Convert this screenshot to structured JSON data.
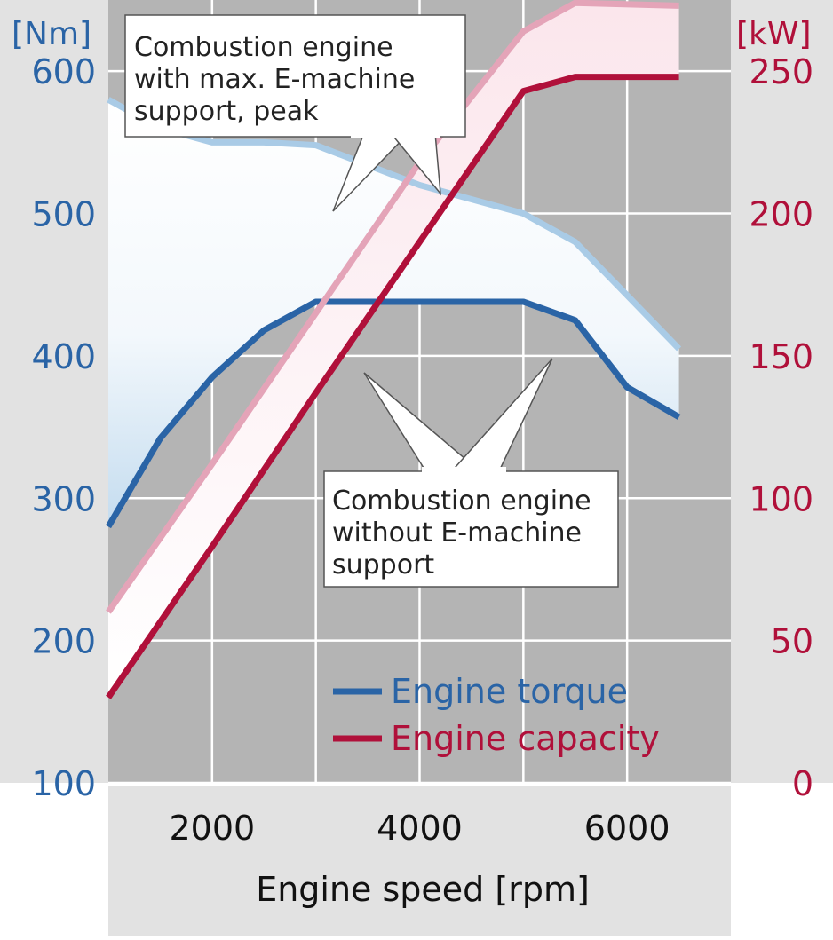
{
  "chart_data": {
    "type": "line",
    "xlabel": "Engine speed [rpm]",
    "x_ticks": [
      2000,
      4000,
      6000
    ],
    "xlim": [
      1000,
      7000
    ],
    "y_left": {
      "unit_label": "[Nm]",
      "ticks": [
        100,
        200,
        300,
        400,
        500,
        600
      ],
      "range": [
        100,
        650
      ],
      "color": "#2a64a6"
    },
    "y_right": {
      "unit_label": "[kW]",
      "ticks": [
        0,
        50,
        100,
        150,
        200,
        250
      ],
      "range": [
        0,
        275
      ],
      "color": "#b0103a"
    },
    "grid": true,
    "legend": {
      "position": "bottom-right",
      "items": [
        {
          "label": "Engine torque",
          "color": "#2a64a6"
        },
        {
          "label": "Engine capacity",
          "color": "#b0103a"
        }
      ]
    },
    "annotations": [
      {
        "lines": [
          "Combustion engine",
          "with max. E-machine",
          "support, peak"
        ]
      },
      {
        "lines": [
          "Combustion engine",
          "without E-machine",
          "support"
        ]
      }
    ],
    "series": [
      {
        "name": "Engine torque",
        "axis": "left",
        "color": "#2a64a6",
        "x": [
          1000,
          1500,
          2000,
          2500,
          3000,
          3500,
          4000,
          4500,
          5000,
          5500,
          6000,
          6500
        ],
        "y": [
          280,
          342,
          385,
          418,
          438,
          438,
          438,
          438,
          438,
          425,
          378,
          357
        ]
      },
      {
        "name": "Engine capacity",
        "axis": "right",
        "color": "#b0103a",
        "x": [
          1000,
          2000,
          3000,
          4000,
          5000,
          5500,
          6500
        ],
        "y": [
          30,
          83,
          137,
          190,
          243,
          248,
          248
        ]
      }
    ],
    "bands": [
      {
        "axis": "left",
        "color": "#a9cbe6",
        "upper_x": [
          1000,
          1500,
          2000,
          2500,
          3000,
          4000,
          5000,
          5500,
          6500
        ],
        "upper_y": [
          580,
          560,
          550,
          550,
          548,
          520,
          500,
          480,
          405
        ]
      },
      {
        "axis": "right",
        "color": "#e4a4b8",
        "upper_x": [
          1000,
          2000,
          3000,
          4000,
          5000,
          5500,
          6500
        ],
        "upper_y": [
          60,
          112,
          165,
          218,
          264,
          274,
          273
        ]
      }
    ]
  }
}
